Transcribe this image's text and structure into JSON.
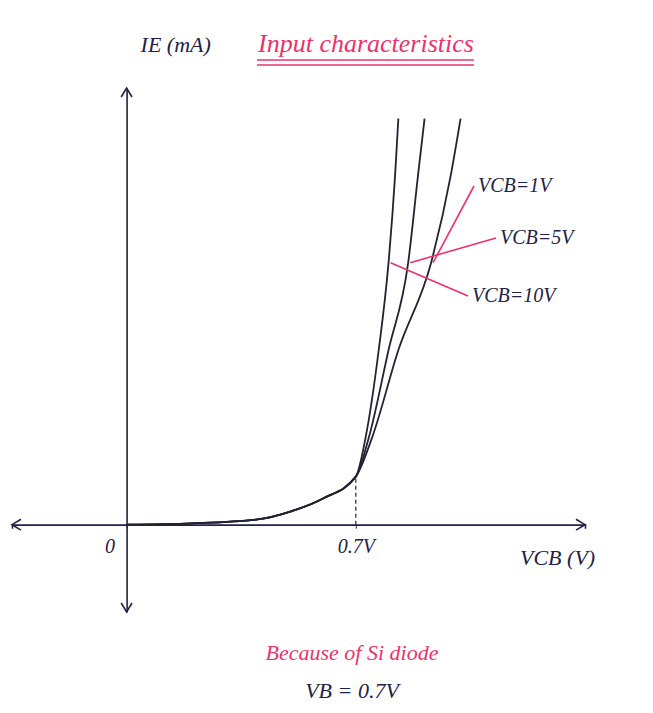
{
  "chart_data": {
    "type": "line",
    "title": "Input characteristics",
    "x_label": "VCB (V)",
    "y_label": "IE (mA)",
    "xlim": [
      -0.35,
      1.4
    ],
    "ylim": [
      -2,
      10
    ],
    "xticks": [
      0,
      {
        "value": 0.7,
        "label": "0.7V"
      }
    ],
    "yticks": [],
    "tick_labels": "x",
    "grid": false,
    "series": [
      {
        "name": "VCB=1V",
        "color": "#222233",
        "line_style": "solid",
        "x": [
          0,
          0.2,
          0.4,
          0.5,
          0.6,
          0.7,
          0.75,
          0.83,
          0.93,
          0.99,
          1.02
        ],
        "values": [
          0,
          0.03,
          0.12,
          0.3,
          0.6,
          1.1,
          2,
          4,
          6,
          8,
          9.3
        ]
      },
      {
        "name": "VCB=5V",
        "color": "#222233",
        "line_style": "solid",
        "x": [
          0,
          0.2,
          0.4,
          0.5,
          0.6,
          0.7,
          0.74,
          0.8,
          0.86,
          0.89,
          0.91
        ],
        "values": [
          0,
          0.03,
          0.12,
          0.3,
          0.6,
          1.1,
          2,
          4,
          6,
          8,
          9.3
        ]
      },
      {
        "name": "VCB=10V",
        "color": "#222233",
        "line_style": "solid",
        "x": [
          0,
          0.2,
          0.4,
          0.5,
          0.6,
          0.7,
          0.73,
          0.77,
          0.8,
          0.82,
          0.83
        ],
        "values": [
          0,
          0.03,
          0.12,
          0.3,
          0.6,
          1.1,
          2,
          4,
          6,
          8,
          9.3
        ]
      }
    ],
    "annotations": [
      {
        "text": "Because of Si diode",
        "color": "#e8336d"
      },
      {
        "text": "VB = 0.7V",
        "color": "#222244"
      }
    ]
  }
}
